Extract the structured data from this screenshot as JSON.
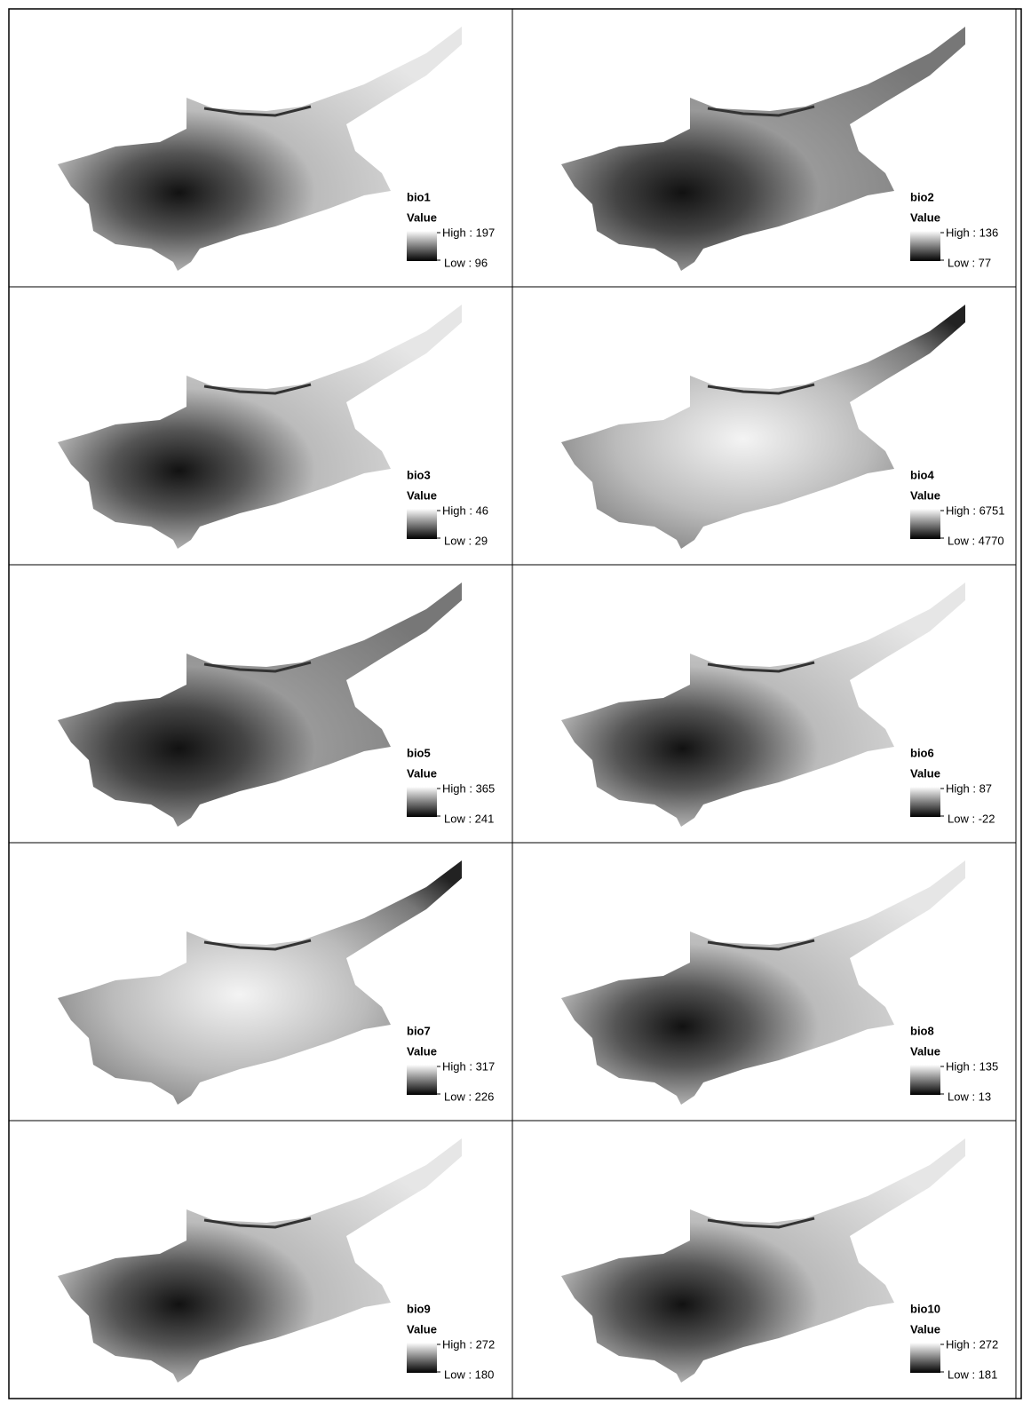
{
  "panels": [
    {
      "title": "bio1",
      "legend_title": "Value",
      "high": "High : 197",
      "low": "Low : 96"
    },
    {
      "title": "bio2",
      "legend_title": "Value",
      "high": "High : 136",
      "low": "Low : 77"
    },
    {
      "title": "bio3",
      "legend_title": "Value",
      "high": "High : 46",
      "low": "Low : 29"
    },
    {
      "title": "bio4",
      "legend_title": "Value",
      "high": "High : 6751",
      "low": "Low : 4770"
    },
    {
      "title": "bio5",
      "legend_title": "Value",
      "high": "High : 365",
      "low": "Low : 241"
    },
    {
      "title": "bio6",
      "legend_title": "Value",
      "high": "High : 87",
      "low": "Low : -22"
    },
    {
      "title": "bio7",
      "legend_title": "Value",
      "high": "High : 317",
      "low": "Low : 226"
    },
    {
      "title": "bio8",
      "legend_title": "Value",
      "high": "High : 135",
      "low": "Low : 13"
    },
    {
      "title": "bio9",
      "legend_title": "Value",
      "high": "High : 272",
      "low": "Low : 180"
    },
    {
      "title": "bio10",
      "legend_title": "Value",
      "high": "High : 272",
      "low": "Low : 181"
    }
  ]
}
